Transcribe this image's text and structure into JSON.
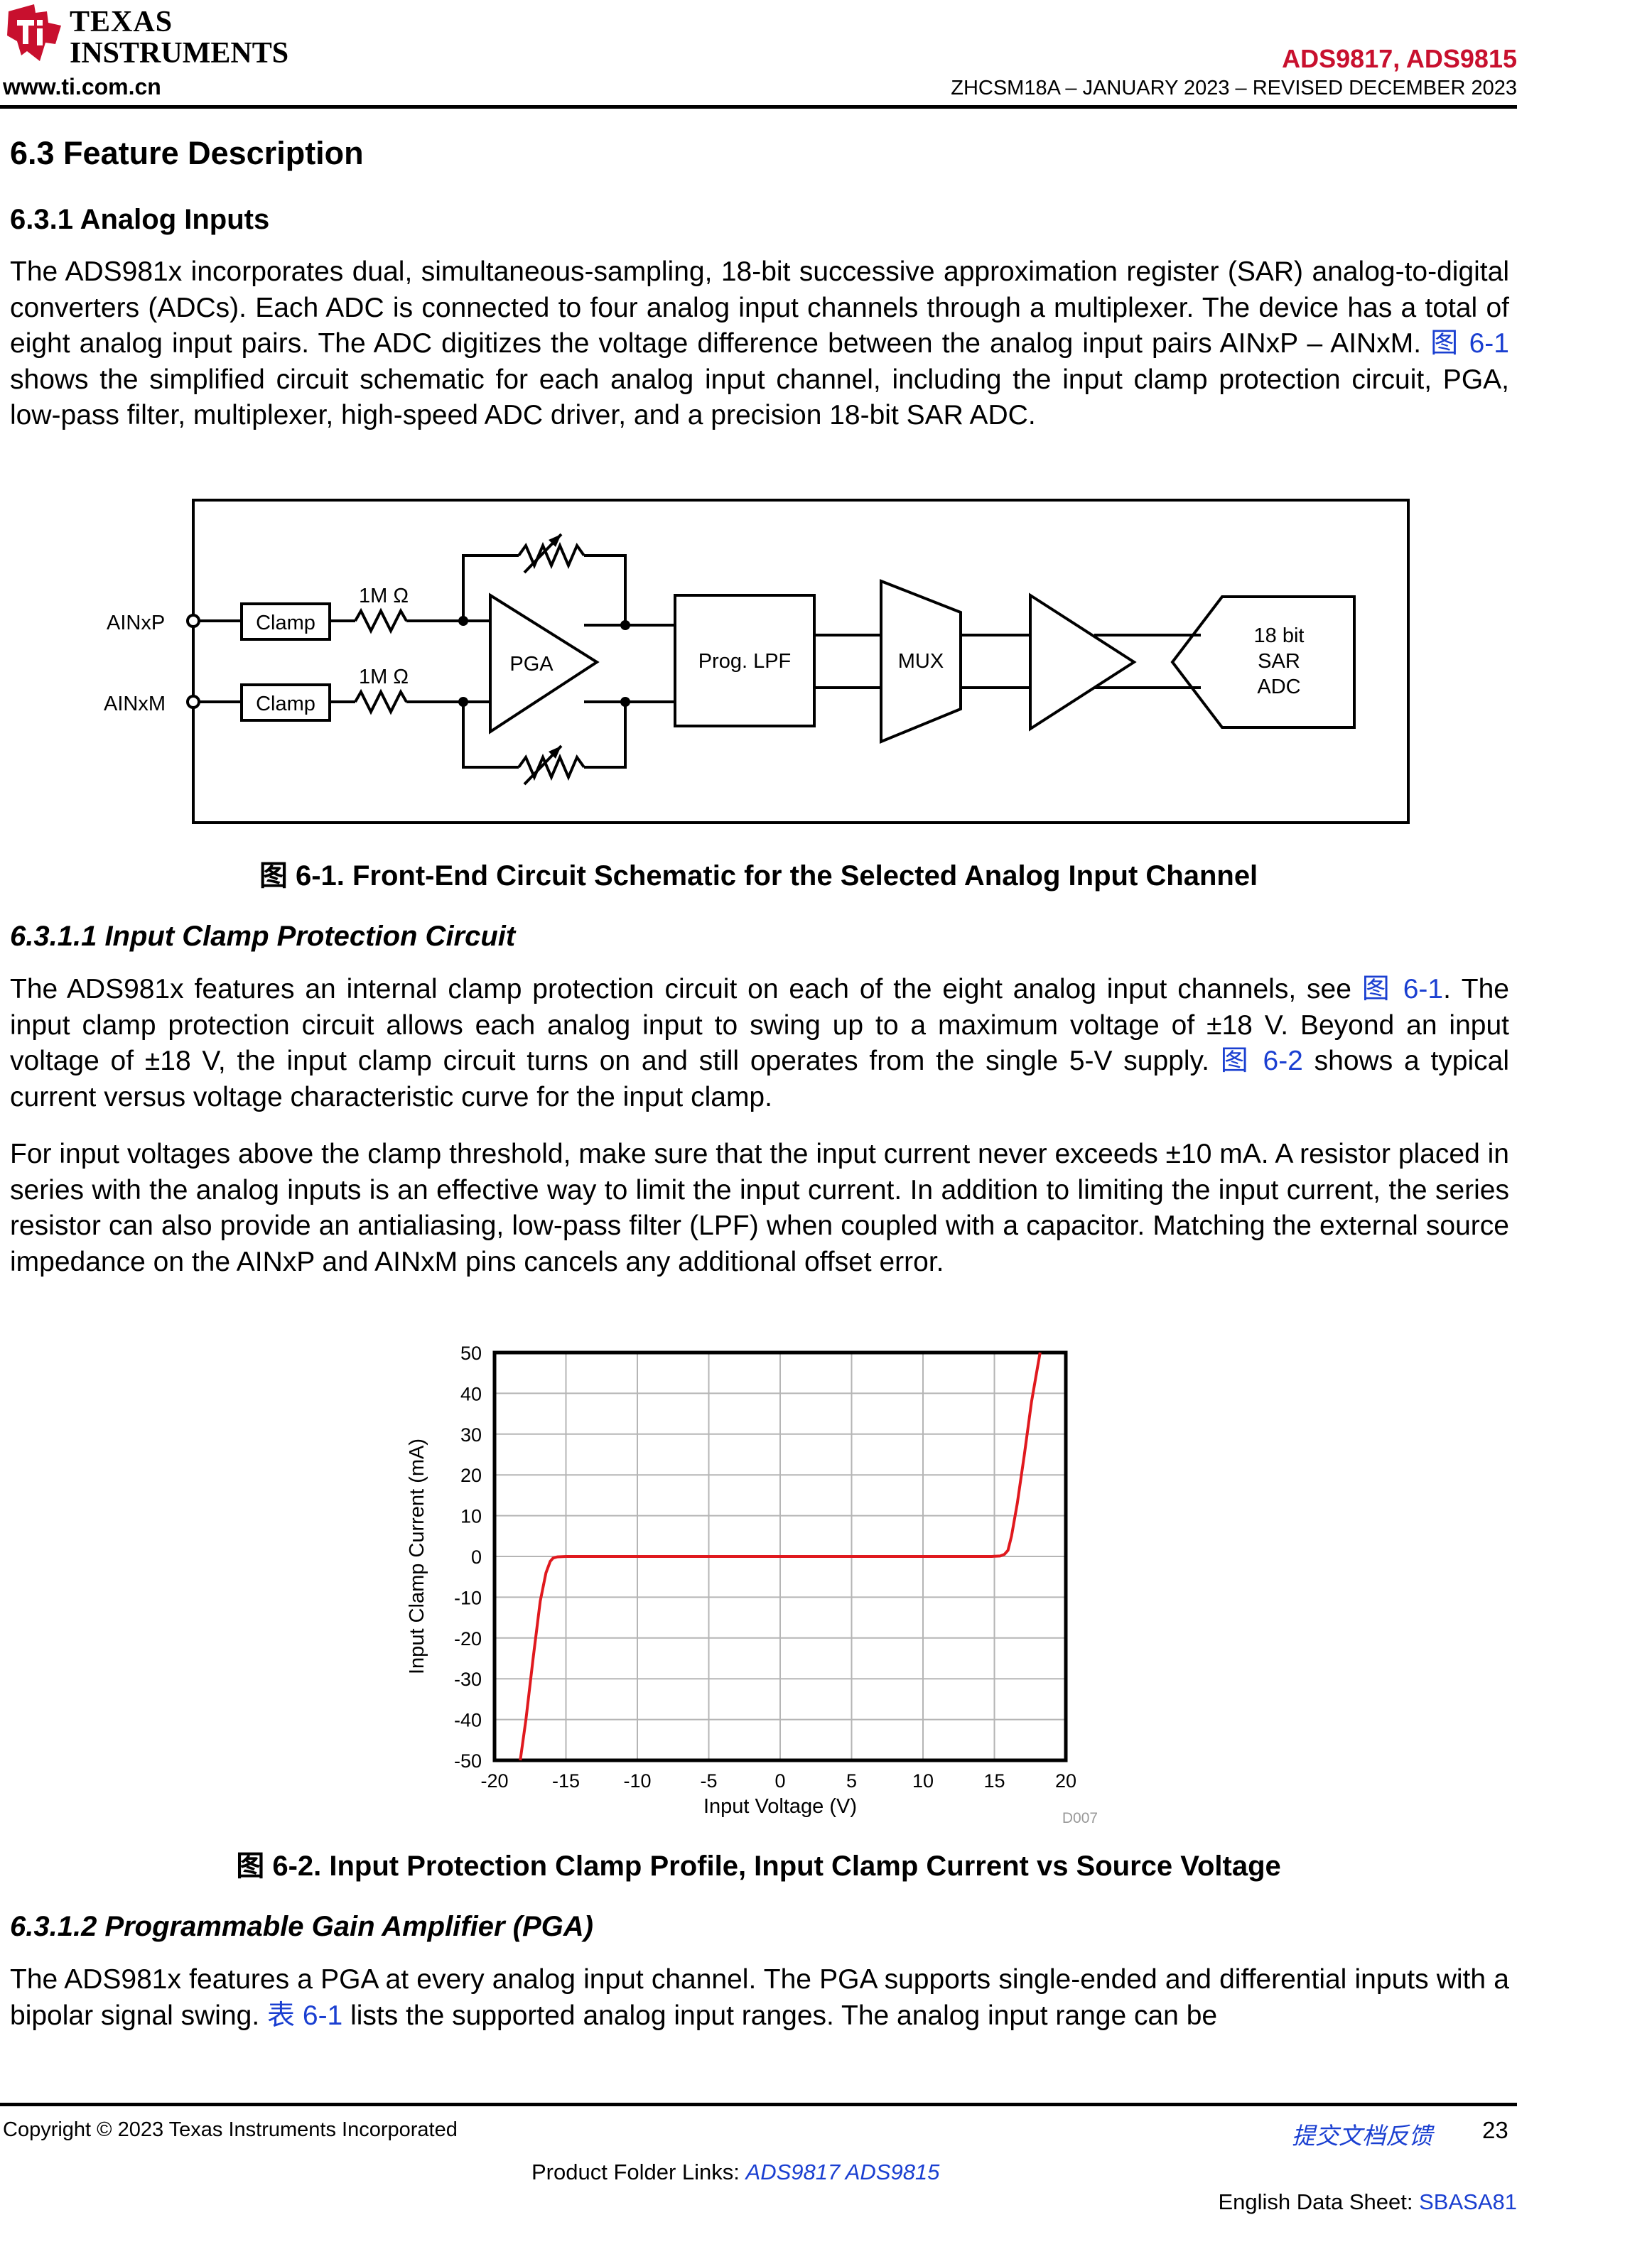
{
  "header": {
    "logo_line1": "TEXAS",
    "logo_line2": "INSTRUMENTS",
    "website": "www.ti.com.cn",
    "doc_title": "ADS9817, ADS9815",
    "doc_id": "ZHCSM18A – JANUARY 2023 – REVISED DECEMBER 2023"
  },
  "sections": {
    "s63": "6.3 Feature Description",
    "s631": "6.3.1 Analog Inputs",
    "s6311": "6.3.1.1 Input Clamp Protection Circuit",
    "s6312": "6.3.1.2 Programmable Gain Amplifier (PGA)"
  },
  "text": {
    "p1_a": "The ADS981x incorporates dual, simultaneous-sampling, 18-bit successive approximation register (SAR) analog-to-digital converters (ADCs). Each ADC is connected to four analog input channels through a multiplexer. The device has a total of eight analog input pairs. The ADC digitizes the voltage difference between the analog input pairs AINxP – AINxM.",
    "p1_link": "图 6-1",
    "p1_b": "shows the simplified circuit schematic for each analog input channel, including the input clamp protection circuit, PGA, low-pass filter, multiplexer, high-speed ADC driver, and a precision 18-bit SAR ADC.",
    "p2_a": "The ADS981x features an internal clamp protection circuit on each of the eight analog input channels, see",
    "p2_link1": "图 6-1",
    "p2_b": ". The input clamp protection circuit allows each analog input to swing up to a maximum voltage of ±18 V. Beyond an input voltage of ±18 V, the input clamp circuit turns on and still operates from the single 5-V supply.",
    "p2_link2": "图 6-2",
    "p2_c": "shows a typical current versus voltage characteristic curve for the input clamp.",
    "p3": "For input voltages above the clamp threshold, make sure that the input current never exceeds ±10 mA. A resistor placed in series with the analog inputs is an effective way to limit the input current. In addition to limiting the input current, the series resistor can also provide an antialiasing, low-pass filter (LPF) when coupled with a capacitor. Matching the external source impedance on the AINxP and AINxM pins cancels any additional offset error.",
    "p4_a": "The ADS981x features a PGA at every analog input channel. The PGA supports single-ended and differential inputs with a bipolar signal swing.",
    "p4_link": "表 6-1",
    "p4_b": "lists the supported analog input ranges. The analog input range can be"
  },
  "figure1": {
    "caption_prefix": "图",
    "caption_text": "6-1. Front-End Circuit Schematic for the Selected Analog Input Channel",
    "labels": {
      "ainxp": "AINxP",
      "ainxm": "AINxM",
      "clamp": "Clamp",
      "res1": "1M Ω",
      "res2": "1M Ω",
      "pga": "PGA",
      "lpf": "Prog. LPF",
      "mux": "MUX",
      "adc_l1": "18 bit",
      "adc_l2": "SAR",
      "adc_l3": "ADC"
    }
  },
  "figure2": {
    "caption_prefix": "图",
    "caption_text": "6-2. Input Protection Clamp Profile, Input Clamp Current vs Source Voltage",
    "tag": "D007"
  },
  "chart_data": {
    "type": "line",
    "title": "",
    "xlabel": "Input Voltage (V)",
    "ylabel": "Input Clamp Current (mA)",
    "xlim": [
      -20,
      20
    ],
    "ylim": [
      -50,
      50
    ],
    "xticks": [
      -20,
      -15,
      -10,
      -5,
      0,
      5,
      10,
      15,
      20
    ],
    "yticks": [
      50,
      40,
      30,
      20,
      10,
      0,
      -10,
      -20,
      -30,
      -40,
      -50
    ],
    "grid": true,
    "legend": "none",
    "series": [
      {
        "color": "#e0191e",
        "x": [
          -18.2,
          -17.8,
          -17.3,
          -16.8,
          -16.4,
          -16.1,
          -15.9,
          -15.6,
          -15.0,
          -10,
          -5,
          0,
          5,
          10,
          14.8,
          15.4,
          15.7,
          15.95,
          16.2,
          16.6,
          17.1,
          17.6,
          18.2
        ],
        "y": [
          -50,
          -40,
          -25,
          -11,
          -4,
          -1.2,
          -0.4,
          -0.1,
          0,
          0,
          0,
          0,
          0,
          0,
          0,
          0.1,
          0.5,
          1.5,
          5,
          13,
          25,
          38,
          50
        ]
      }
    ]
  },
  "footer": {
    "copyright": "Copyright © 2023 Texas Instruments Incorporated",
    "feedback": "提交文档反馈",
    "page": "23",
    "folder_label": "Product Folder Links:",
    "folder_links": "ADS9817 ADS9815",
    "ds_label": "English Data Sheet:",
    "ds_link": "SBASA81"
  }
}
